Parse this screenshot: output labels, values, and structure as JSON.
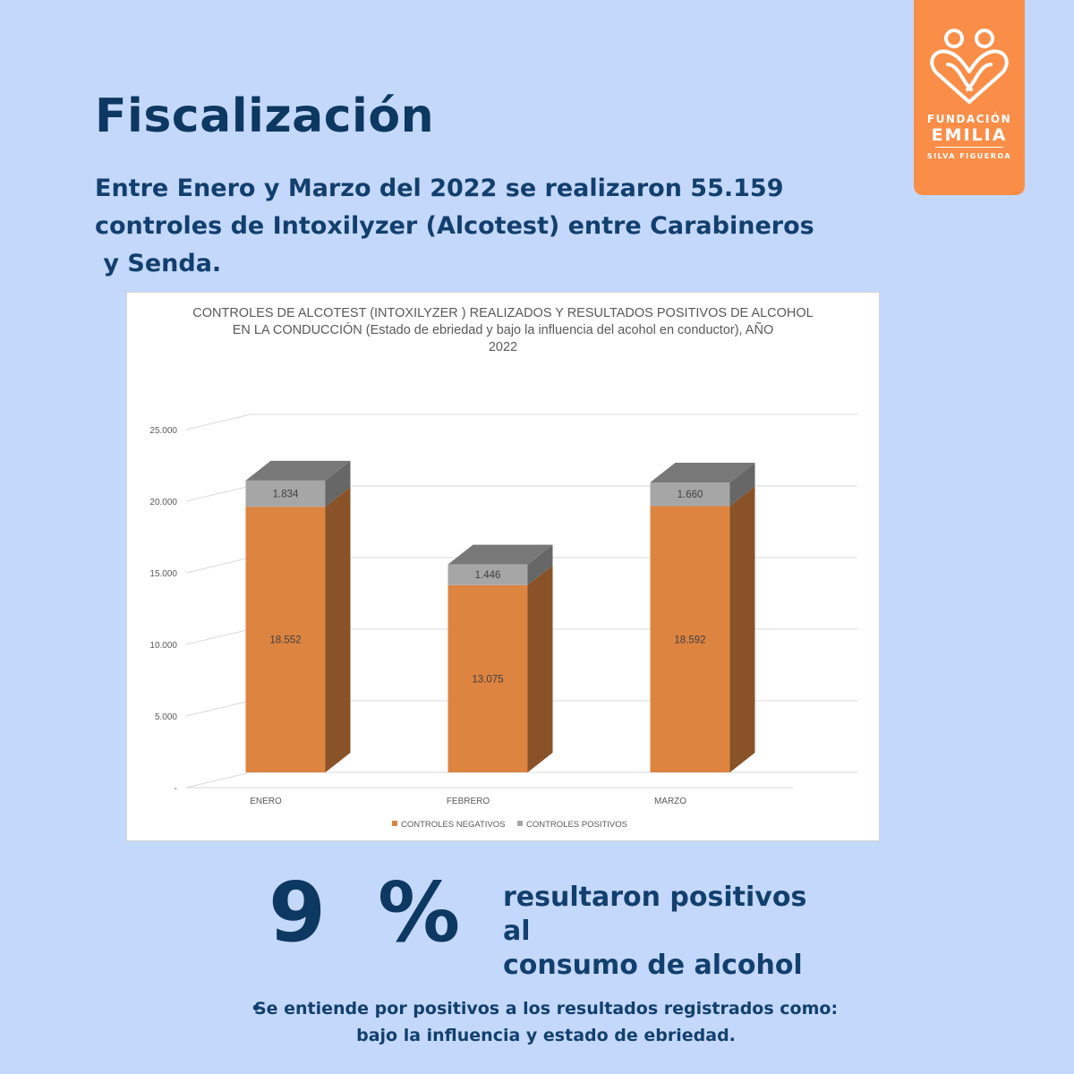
{
  "heading": "Fiscalización",
  "intro": {
    "line1": "Entre Enero y Marzo del 2022 se realizaron 55.159",
    "line2": "controles de Intoxilyzer (Alcotest) entre Carabineros",
    "line3": " y Senda."
  },
  "logo": {
    "line1": "FUNDACIÓN",
    "line2": "EMILIA",
    "line3": "SILVA FIGUEROA",
    "icon": "two-people-heart-icon"
  },
  "chart_data": {
    "type": "bar",
    "stacked": true,
    "title_lines": [
      "CONTROLES DE ALCOTEST (INTOXILYZER ) REALIZADOS  Y RESULTADOS POSITIVOS DE ALCOHOL",
      "EN LA CONDUCCIÓN (Estado de ebriedad y bajo la influencia del acohol en conductor), AÑO",
      "2022"
    ],
    "categories": [
      "ENERO",
      "FEBRERO",
      "MARZO"
    ],
    "series": [
      {
        "name": "CONTROLES NEGATIVOS",
        "values": [
          18552,
          13075,
          18592
        ],
        "labels": [
          "18.552",
          "13.075",
          "18.592"
        ],
        "color": "#dd8440"
      },
      {
        "name": "CONTROLES POSITIVOS",
        "values": [
          1834,
          1446,
          1660
        ],
        "labels": [
          "1.834",
          "1.446",
          "1.660"
        ],
        "color": "#a6a6a6"
      }
    ],
    "ylim": [
      0,
      25000
    ],
    "yticks": [
      0,
      5000,
      10000,
      15000,
      20000,
      25000
    ],
    "ytick_labels": [
      "-",
      "5.000",
      "10.000",
      "15.000",
      "20.000",
      "25.000"
    ],
    "grid": true,
    "legend_position": "bottom",
    "xlabel": "",
    "ylabel": ""
  },
  "stat": {
    "value": "9 %",
    "label_line1": "resultaron positivos al",
    "label_line2": "consumo de alcohol"
  },
  "note": {
    "bullet": "•",
    "line1": "Se entiende por positivos a los resultados registrados como:",
    "line2": "bajo la influencia y estado de ebriedad."
  }
}
